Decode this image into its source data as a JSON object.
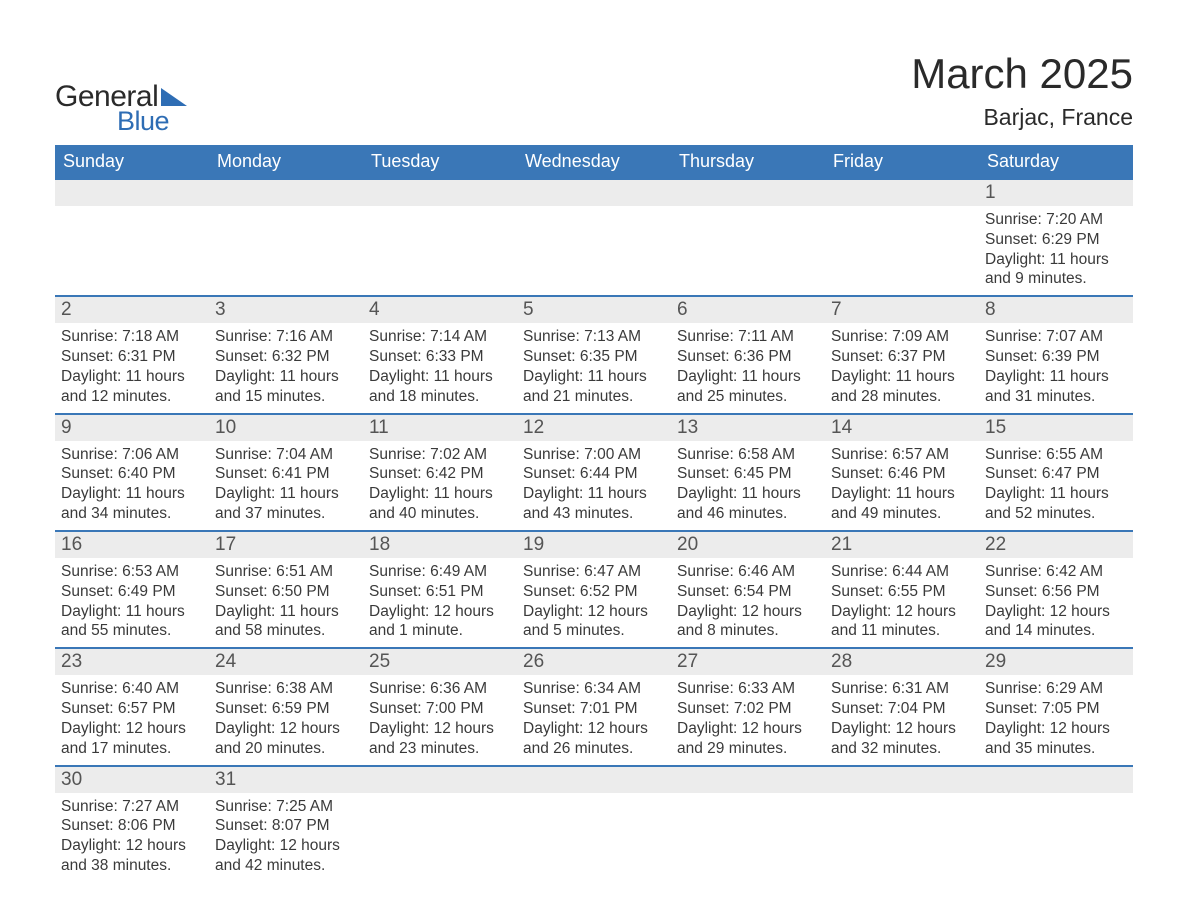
{
  "brand": {
    "word1": "General",
    "word2": "Blue",
    "accent_color": "#2e6db4"
  },
  "title": "March 2025",
  "location": "Barjac, France",
  "colors": {
    "header_bg": "#3a77b7",
    "header_text": "#ffffff",
    "daynum_bg": "#ececec",
    "row_border": "#3a77b7",
    "body_text": "#3a3a3a",
    "page_bg": "#ffffff"
  },
  "fonts": {
    "title_size_pt": 42,
    "location_size_pt": 23,
    "header_size_pt": 18,
    "daynum_size_pt": 19,
    "body_size_pt": 15.5
  },
  "weekdays": [
    "Sunday",
    "Monday",
    "Tuesday",
    "Wednesday",
    "Thursday",
    "Friday",
    "Saturday"
  ],
  "weeks": [
    [
      null,
      null,
      null,
      null,
      null,
      null,
      {
        "n": "1",
        "sunrise": "Sunrise: 7:20 AM",
        "sunset": "Sunset: 6:29 PM",
        "day": "Daylight: 11 hours and 9 minutes."
      }
    ],
    [
      {
        "n": "2",
        "sunrise": "Sunrise: 7:18 AM",
        "sunset": "Sunset: 6:31 PM",
        "day": "Daylight: 11 hours and 12 minutes."
      },
      {
        "n": "3",
        "sunrise": "Sunrise: 7:16 AM",
        "sunset": "Sunset: 6:32 PM",
        "day": "Daylight: 11 hours and 15 minutes."
      },
      {
        "n": "4",
        "sunrise": "Sunrise: 7:14 AM",
        "sunset": "Sunset: 6:33 PM",
        "day": "Daylight: 11 hours and 18 minutes."
      },
      {
        "n": "5",
        "sunrise": "Sunrise: 7:13 AM",
        "sunset": "Sunset: 6:35 PM",
        "day": "Daylight: 11 hours and 21 minutes."
      },
      {
        "n": "6",
        "sunrise": "Sunrise: 7:11 AM",
        "sunset": "Sunset: 6:36 PM",
        "day": "Daylight: 11 hours and 25 minutes."
      },
      {
        "n": "7",
        "sunrise": "Sunrise: 7:09 AM",
        "sunset": "Sunset: 6:37 PM",
        "day": "Daylight: 11 hours and 28 minutes."
      },
      {
        "n": "8",
        "sunrise": "Sunrise: 7:07 AM",
        "sunset": "Sunset: 6:39 PM",
        "day": "Daylight: 11 hours and 31 minutes."
      }
    ],
    [
      {
        "n": "9",
        "sunrise": "Sunrise: 7:06 AM",
        "sunset": "Sunset: 6:40 PM",
        "day": "Daylight: 11 hours and 34 minutes."
      },
      {
        "n": "10",
        "sunrise": "Sunrise: 7:04 AM",
        "sunset": "Sunset: 6:41 PM",
        "day": "Daylight: 11 hours and 37 minutes."
      },
      {
        "n": "11",
        "sunrise": "Sunrise: 7:02 AM",
        "sunset": "Sunset: 6:42 PM",
        "day": "Daylight: 11 hours and 40 minutes."
      },
      {
        "n": "12",
        "sunrise": "Sunrise: 7:00 AM",
        "sunset": "Sunset: 6:44 PM",
        "day": "Daylight: 11 hours and 43 minutes."
      },
      {
        "n": "13",
        "sunrise": "Sunrise: 6:58 AM",
        "sunset": "Sunset: 6:45 PM",
        "day": "Daylight: 11 hours and 46 minutes."
      },
      {
        "n": "14",
        "sunrise": "Sunrise: 6:57 AM",
        "sunset": "Sunset: 6:46 PM",
        "day": "Daylight: 11 hours and 49 minutes."
      },
      {
        "n": "15",
        "sunrise": "Sunrise: 6:55 AM",
        "sunset": "Sunset: 6:47 PM",
        "day": "Daylight: 11 hours and 52 minutes."
      }
    ],
    [
      {
        "n": "16",
        "sunrise": "Sunrise: 6:53 AM",
        "sunset": "Sunset: 6:49 PM",
        "day": "Daylight: 11 hours and 55 minutes."
      },
      {
        "n": "17",
        "sunrise": "Sunrise: 6:51 AM",
        "sunset": "Sunset: 6:50 PM",
        "day": "Daylight: 11 hours and 58 minutes."
      },
      {
        "n": "18",
        "sunrise": "Sunrise: 6:49 AM",
        "sunset": "Sunset: 6:51 PM",
        "day": "Daylight: 12 hours and 1 minute."
      },
      {
        "n": "19",
        "sunrise": "Sunrise: 6:47 AM",
        "sunset": "Sunset: 6:52 PM",
        "day": "Daylight: 12 hours and 5 minutes."
      },
      {
        "n": "20",
        "sunrise": "Sunrise: 6:46 AM",
        "sunset": "Sunset: 6:54 PM",
        "day": "Daylight: 12 hours and 8 minutes."
      },
      {
        "n": "21",
        "sunrise": "Sunrise: 6:44 AM",
        "sunset": "Sunset: 6:55 PM",
        "day": "Daylight: 12 hours and 11 minutes."
      },
      {
        "n": "22",
        "sunrise": "Sunrise: 6:42 AM",
        "sunset": "Sunset: 6:56 PM",
        "day": "Daylight: 12 hours and 14 minutes."
      }
    ],
    [
      {
        "n": "23",
        "sunrise": "Sunrise: 6:40 AM",
        "sunset": "Sunset: 6:57 PM",
        "day": "Daylight: 12 hours and 17 minutes."
      },
      {
        "n": "24",
        "sunrise": "Sunrise: 6:38 AM",
        "sunset": "Sunset: 6:59 PM",
        "day": "Daylight: 12 hours and 20 minutes."
      },
      {
        "n": "25",
        "sunrise": "Sunrise: 6:36 AM",
        "sunset": "Sunset: 7:00 PM",
        "day": "Daylight: 12 hours and 23 minutes."
      },
      {
        "n": "26",
        "sunrise": "Sunrise: 6:34 AM",
        "sunset": "Sunset: 7:01 PM",
        "day": "Daylight: 12 hours and 26 minutes."
      },
      {
        "n": "27",
        "sunrise": "Sunrise: 6:33 AM",
        "sunset": "Sunset: 7:02 PM",
        "day": "Daylight: 12 hours and 29 minutes."
      },
      {
        "n": "28",
        "sunrise": "Sunrise: 6:31 AM",
        "sunset": "Sunset: 7:04 PM",
        "day": "Daylight: 12 hours and 32 minutes."
      },
      {
        "n": "29",
        "sunrise": "Sunrise: 6:29 AM",
        "sunset": "Sunset: 7:05 PM",
        "day": "Daylight: 12 hours and 35 minutes."
      }
    ],
    [
      {
        "n": "30",
        "sunrise": "Sunrise: 7:27 AM",
        "sunset": "Sunset: 8:06 PM",
        "day": "Daylight: 12 hours and 38 minutes."
      },
      {
        "n": "31",
        "sunrise": "Sunrise: 7:25 AM",
        "sunset": "Sunset: 8:07 PM",
        "day": "Daylight: 12 hours and 42 minutes."
      },
      null,
      null,
      null,
      null,
      null
    ]
  ]
}
